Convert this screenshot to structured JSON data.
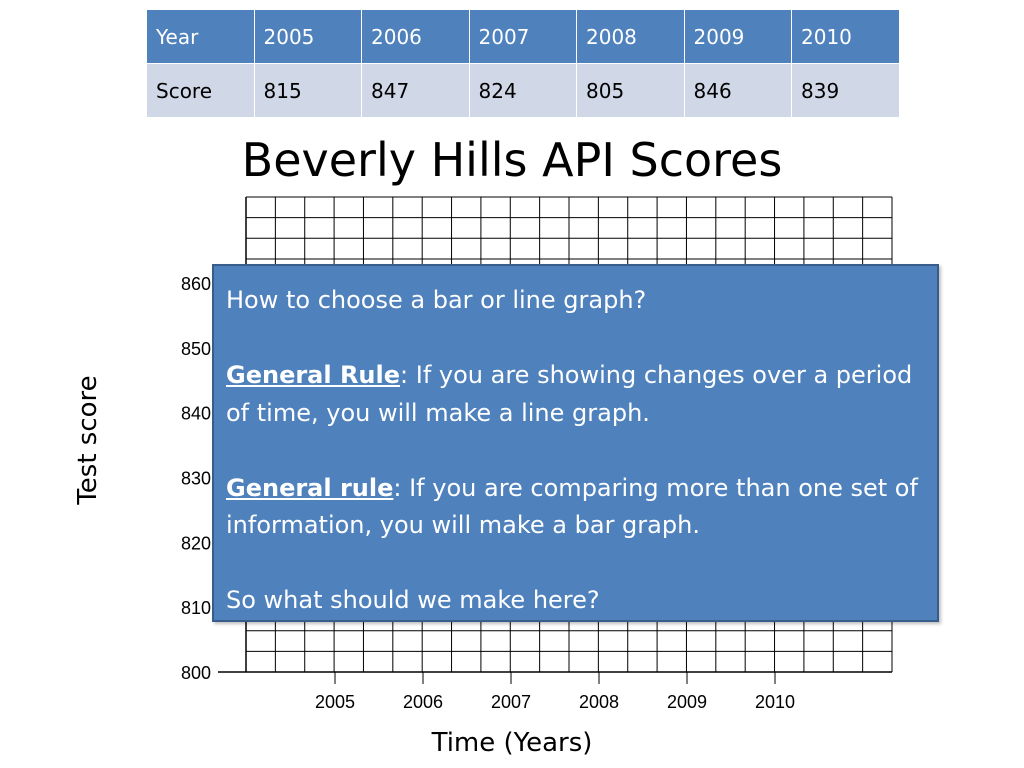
{
  "table": {
    "header": [
      "Year",
      "2005",
      "2006",
      "2007",
      "2008",
      "2009",
      "2010"
    ],
    "row": [
      "Score",
      "815",
      "847",
      "824",
      "805",
      "846",
      "839"
    ]
  },
  "title": "Beverly Hills API Scores",
  "callout": {
    "question": "How to choose a bar or line graph?",
    "rule1_head": "General Rule",
    "rule1_text": ": If you are showing changes over a period of time, you will make a line graph.",
    "rule2_head": "General rule",
    "rule2_text": ": If you are comparing more than one set of information, you will make a bar graph.",
    "closing": "So what should we make here?"
  },
  "chart_data": {
    "type": "line",
    "title": "Beverly Hills API Scores",
    "xlabel": "Time (Years)",
    "ylabel": "Test score",
    "x_ticks": [
      "2005",
      "2006",
      "2007",
      "2008",
      "2009",
      "2010"
    ],
    "y_ticks": [
      "800",
      "810",
      "820",
      "830",
      "840",
      "850",
      "860"
    ],
    "ylim": [
      800,
      860
    ],
    "grid": true,
    "series": [
      {
        "values": []
      }
    ],
    "note": ""
  },
  "colors": {
    "table_header": "#4f81bd",
    "table_body": "#d0d8e8",
    "callout_fill": "#4f81bd",
    "callout_border": "#385d8a",
    "grid_line": "#000000"
  }
}
